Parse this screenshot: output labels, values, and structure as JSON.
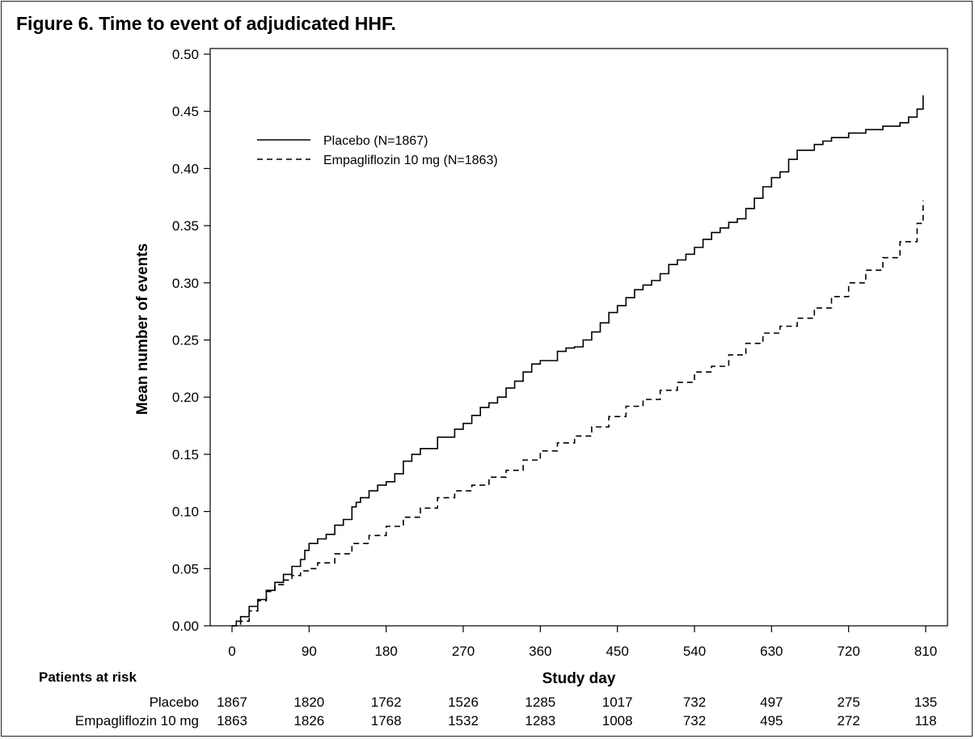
{
  "title": "Figure 6. Time to event of adjudicated HHF.",
  "chart_data": {
    "type": "line",
    "xlabel": "Study day",
    "ylabel": "Mean number of events",
    "xlim": [
      0,
      810
    ],
    "ylim": [
      0,
      0.5
    ],
    "x_ticks": [
      0,
      90,
      180,
      270,
      360,
      450,
      540,
      630,
      720,
      810
    ],
    "y_ticks": [
      "0.00",
      "0.05",
      "0.10",
      "0.15",
      "0.20",
      "0.25",
      "0.30",
      "0.35",
      "0.40",
      "0.45",
      "0.50"
    ],
    "legend_position": "upper-left",
    "series": [
      {
        "name": "Placebo (N=1867)",
        "style": "solid",
        "color": "#000000",
        "x": [
          0,
          5,
          10,
          20,
          30,
          40,
          50,
          60,
          70,
          80,
          85,
          90,
          100,
          110,
          120,
          130,
          140,
          145,
          150,
          160,
          170,
          180,
          190,
          200,
          210,
          220,
          240,
          260,
          270,
          280,
          290,
          300,
          310,
          320,
          330,
          340,
          350,
          360,
          380,
          390,
          400,
          410,
          420,
          430,
          440,
          450,
          460,
          470,
          480,
          490,
          500,
          510,
          520,
          530,
          540,
          550,
          560,
          570,
          580,
          590,
          600,
          610,
          620,
          630,
          640,
          650,
          660,
          680,
          690,
          700,
          720,
          740,
          760,
          780,
          790,
          800,
          807
        ],
        "y": [
          0.0,
          0.004,
          0.008,
          0.017,
          0.023,
          0.031,
          0.038,
          0.045,
          0.052,
          0.058,
          0.066,
          0.072,
          0.076,
          0.08,
          0.088,
          0.093,
          0.104,
          0.108,
          0.112,
          0.118,
          0.123,
          0.126,
          0.133,
          0.144,
          0.15,
          0.155,
          0.165,
          0.172,
          0.177,
          0.184,
          0.191,
          0.195,
          0.2,
          0.208,
          0.214,
          0.222,
          0.229,
          0.232,
          0.24,
          0.243,
          0.244,
          0.25,
          0.257,
          0.265,
          0.274,
          0.28,
          0.287,
          0.294,
          0.298,
          0.302,
          0.308,
          0.316,
          0.32,
          0.325,
          0.331,
          0.338,
          0.344,
          0.348,
          0.353,
          0.356,
          0.365,
          0.374,
          0.384,
          0.392,
          0.397,
          0.408,
          0.416,
          0.421,
          0.424,
          0.427,
          0.431,
          0.434,
          0.437,
          0.44,
          0.445,
          0.452,
          0.464
        ]
      },
      {
        "name": "Empagliflozin 10 mg (N=1863)",
        "style": "dashed",
        "color": "#000000",
        "x": [
          0,
          10,
          20,
          30,
          40,
          50,
          60,
          70,
          80,
          90,
          100,
          120,
          140,
          160,
          180,
          200,
          220,
          240,
          260,
          280,
          300,
          320,
          340,
          360,
          380,
          400,
          420,
          440,
          460,
          480,
          500,
          520,
          540,
          560,
          580,
          600,
          620,
          640,
          660,
          680,
          700,
          720,
          740,
          760,
          780,
          800,
          807
        ],
        "y": [
          0.0,
          0.004,
          0.013,
          0.022,
          0.03,
          0.036,
          0.04,
          0.044,
          0.048,
          0.05,
          0.055,
          0.063,
          0.072,
          0.079,
          0.087,
          0.095,
          0.103,
          0.112,
          0.118,
          0.123,
          0.13,
          0.136,
          0.145,
          0.153,
          0.16,
          0.166,
          0.174,
          0.183,
          0.192,
          0.198,
          0.206,
          0.213,
          0.222,
          0.227,
          0.237,
          0.247,
          0.256,
          0.262,
          0.269,
          0.278,
          0.288,
          0.3,
          0.311,
          0.322,
          0.336,
          0.352,
          0.372
        ]
      }
    ],
    "risk_table": {
      "header": "Patients at risk",
      "rows": [
        {
          "label": "Placebo",
          "values": [
            "1867",
            "1820",
            "1762",
            "1526",
            "1285",
            "1017",
            "732",
            "497",
            "275",
            "135"
          ]
        },
        {
          "label": "Empagliflozin 10 mg",
          "values": [
            "1863",
            "1826",
            "1768",
            "1532",
            "1283",
            "1008",
            "732",
            "495",
            "272",
            "118"
          ]
        }
      ]
    }
  }
}
